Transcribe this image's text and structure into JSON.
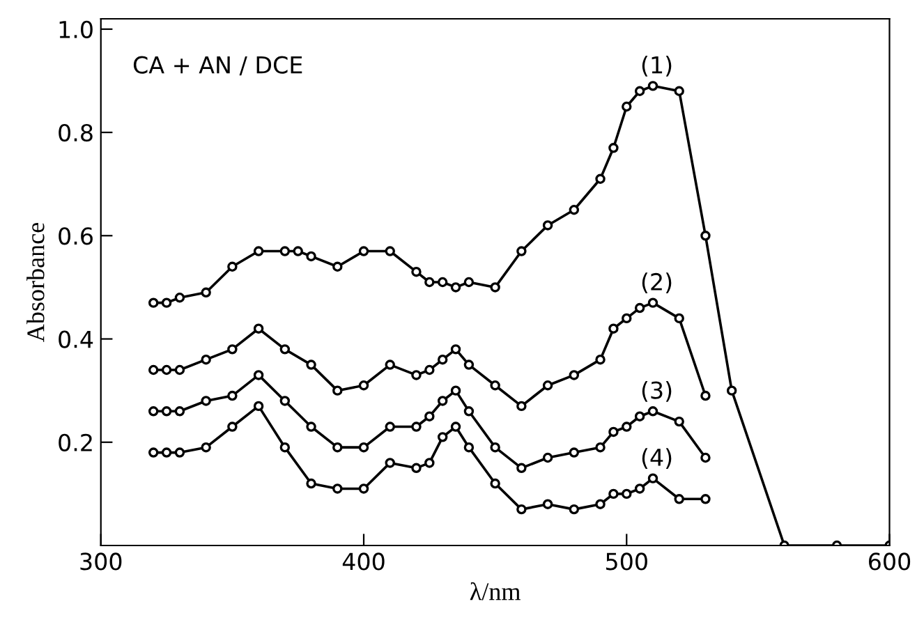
{
  "chart_data": {
    "type": "line",
    "xlabel": "λ/nm",
    "ylabel": "Absorbance",
    "xlim": [
      300,
      600
    ],
    "xticks": [
      300,
      400,
      500,
      600
    ],
    "ylim": [
      0,
      1.02
    ],
    "yticks": [
      0.2,
      0.4,
      0.6,
      0.8,
      {
        "value": 1,
        "label": "1.0"
      }
    ],
    "marker": "circle",
    "line_style": "solid",
    "grid": false,
    "legend": false,
    "series": [
      {
        "name": "(1)",
        "color": "#000000",
        "x": [
          320,
          325,
          330,
          340,
          350,
          360,
          370,
          375,
          380,
          390,
          400,
          410,
          420,
          425,
          430,
          435,
          440,
          450,
          460,
          470,
          480,
          490,
          495,
          500,
          505,
          510,
          520,
          530,
          540,
          560,
          580,
          600
        ],
        "values": [
          0.47,
          0.47,
          0.48,
          0.49,
          0.54,
          0.57,
          0.57,
          0.57,
          0.56,
          0.54,
          0.57,
          0.57,
          0.53,
          0.51,
          0.51,
          0.5,
          0.51,
          0.5,
          0.57,
          0.62,
          0.65,
          0.71,
          0.77,
          0.85,
          0.88,
          0.89,
          0.88,
          0.6,
          0.3,
          0,
          0,
          0
        ]
      },
      {
        "name": "(2)",
        "color": "#000000",
        "x": [
          320,
          325,
          330,
          340,
          350,
          360,
          370,
          380,
          390,
          400,
          410,
          420,
          425,
          430,
          435,
          440,
          450,
          460,
          470,
          480,
          490,
          495,
          500,
          505,
          510,
          520,
          530
        ],
        "values": [
          0.34,
          0.34,
          0.34,
          0.36,
          0.38,
          0.42,
          0.38,
          0.35,
          0.3,
          0.31,
          0.35,
          0.33,
          0.34,
          0.36,
          0.38,
          0.35,
          0.31,
          0.27,
          0.31,
          0.33,
          0.36,
          0.42,
          0.44,
          0.46,
          0.47,
          0.44,
          0.29
        ]
      },
      {
        "name": "(3)",
        "color": "#000000",
        "x": [
          320,
          325,
          330,
          340,
          350,
          360,
          370,
          380,
          390,
          400,
          410,
          420,
          425,
          430,
          435,
          440,
          450,
          460,
          470,
          480,
          490,
          495,
          500,
          505,
          510,
          520,
          530
        ],
        "values": [
          0.26,
          0.26,
          0.26,
          0.28,
          0.29,
          0.33,
          0.28,
          0.23,
          0.19,
          0.19,
          0.23,
          0.23,
          0.25,
          0.28,
          0.3,
          0.26,
          0.19,
          0.15,
          0.17,
          0.18,
          0.19,
          0.22,
          0.23,
          0.25,
          0.26,
          0.24,
          0.17
        ]
      },
      {
        "name": "(4)",
        "color": "#000000",
        "x": [
          320,
          325,
          330,
          340,
          350,
          360,
          370,
          380,
          390,
          400,
          410,
          420,
          425,
          430,
          435,
          440,
          450,
          460,
          470,
          480,
          490,
          495,
          500,
          505,
          510,
          520,
          530
        ],
        "values": [
          0.18,
          0.18,
          0.18,
          0.19,
          0.23,
          0.27,
          0.19,
          0.12,
          0.11,
          0.11,
          0.16,
          0.15,
          0.16,
          0.21,
          0.23,
          0.19,
          0.12,
          0.07,
          0.08,
          0.07,
          0.08,
          0.1,
          0.1,
          0.11,
          0.13,
          0.09,
          0.09
        ]
      }
    ],
    "annotations": [
      "CA + AN / DCE"
    ]
  }
}
